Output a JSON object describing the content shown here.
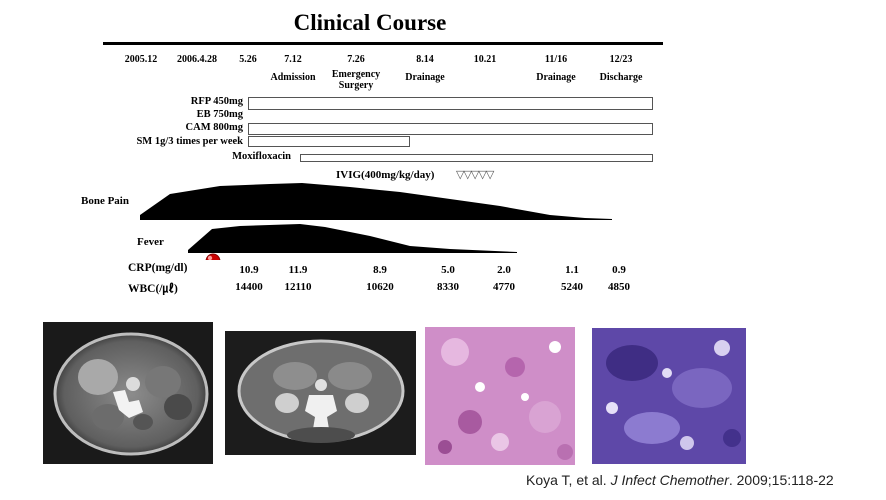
{
  "title": "Clinical Course",
  "dates": [
    "2005.12",
    "2006.4.28",
    "5.26",
    "7.12",
    "7.26",
    "8.14",
    "10.21",
    "11/16",
    "12/23"
  ],
  "events": {
    "admission": "Admission",
    "emergency_surgery_1": "Emergency",
    "emergency_surgery_2": "Surgery",
    "drainage1": "Drainage",
    "drainage2": "Drainage",
    "discharge": "Discharge"
  },
  "drugs": {
    "rfp": "RFP 450mg",
    "eb": "EB 750mg",
    "cam": "CAM 800mg",
    "sm": "SM 1g/3 times per week",
    "moxi": "Moxifloxacin"
  },
  "ivig": {
    "label": "IVIG(400mg/kg/day)",
    "marks": "▽▽▽▽▽"
  },
  "curves": {
    "bone_pain": "Bone Pain",
    "fever": "Fever"
  },
  "labs": {
    "crp_label": "CRP(mg/dl)",
    "wbc_label": "WBC(/㎕)",
    "crp": [
      "10.9",
      "11.9",
      "8.9",
      "5.0",
      "2.0",
      "1.1",
      "0.9"
    ],
    "wbc": [
      "14400",
      "12110",
      "10620",
      "8330",
      "4770",
      "5240",
      "4850"
    ]
  },
  "citation": {
    "authors": "Koya T, et al. ",
    "journal": "J Infect Chemother",
    "rest": ". 2009;15:118-22"
  },
  "colors": {
    "marker": "#cc0000",
    "curve": "#000000",
    "he_stain": "#c87fc0",
    "pas_stain": "#5a3fa0"
  }
}
